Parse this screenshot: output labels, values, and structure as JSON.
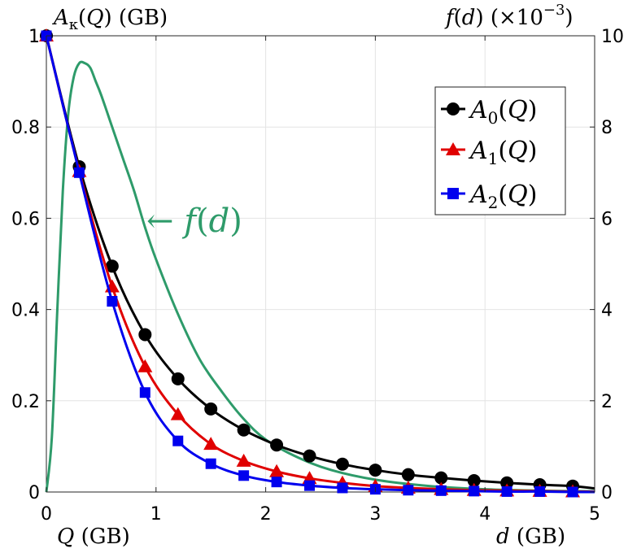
{
  "chart_data": {
    "type": "line",
    "xlabel_left": "Q (GB)",
    "xlabel_right": "d (GB)",
    "ylabel_left": "Aκ(Q) (GB)",
    "ylabel_right": "f(d) (×10−3)",
    "xlim": [
      0,
      5
    ],
    "ylim_left": [
      0,
      1
    ],
    "ylim_right": [
      0,
      10
    ],
    "x_ticks": [
      "0",
      "1",
      "2",
      "3",
      "4",
      "5"
    ],
    "y_ticks_left": [
      "0",
      "0.2",
      "0.4",
      "0.6",
      "0.8",
      "1"
    ],
    "y_ticks_right": [
      "0",
      "2",
      "4",
      "6",
      "8",
      "10"
    ],
    "grid": true,
    "legend_position": "top-right",
    "annotation": "← f(d)",
    "marker_x": [
      0,
      0.3,
      0.6,
      0.9,
      1.2,
      1.5,
      1.8,
      2.1,
      2.4,
      2.7,
      3.0,
      3.3,
      3.6,
      3.9,
      4.2,
      4.5,
      4.8
    ],
    "series": [
      {
        "name": "A0(Q)",
        "color": "#000000",
        "marker": "circle",
        "axis": "left",
        "values": [
          1.0,
          0.713,
          0.495,
          0.345,
          0.248,
          0.182,
          0.136,
          0.103,
          0.079,
          0.061,
          0.048,
          0.038,
          0.031,
          0.025,
          0.02,
          0.016,
          0.013
        ]
      },
      {
        "name": "A1(Q)",
        "color": "#e00000",
        "marker": "triangle",
        "axis": "left",
        "values": [
          1.0,
          0.703,
          0.45,
          0.275,
          0.17,
          0.105,
          0.068,
          0.045,
          0.03,
          0.02,
          0.013,
          0.009,
          0.006,
          0.004,
          0.003,
          0.002,
          0.001
        ]
      },
      {
        "name": "A2(Q)",
        "color": "#0000ee",
        "marker": "square",
        "axis": "left",
        "values": [
          1.0,
          0.7,
          0.418,
          0.218,
          0.112,
          0.062,
          0.036,
          0.022,
          0.014,
          0.009,
          0.006,
          0.004,
          0.003,
          0.002,
          0.001,
          0.001,
          0.0
        ]
      },
      {
        "name": "f(d)",
        "color": "#2e9b6a",
        "marker": "none",
        "axis": "right",
        "x": [
          0,
          0.05,
          0.1,
          0.15,
          0.2,
          0.25,
          0.3,
          0.35,
          0.4,
          0.45,
          0.5,
          0.6,
          0.7,
          0.8,
          0.9,
          1.0,
          1.2,
          1.4,
          1.6,
          1.8,
          2.0,
          2.3,
          2.6,
          3.0,
          3.5,
          4.0,
          4.5,
          5.0
        ],
        "values": [
          0,
          1.2,
          4.0,
          6.6,
          8.3,
          9.1,
          9.4,
          9.4,
          9.3,
          9.0,
          8.7,
          8.0,
          7.3,
          6.6,
          5.8,
          5.1,
          3.9,
          2.9,
          2.2,
          1.6,
          1.15,
          0.75,
          0.48,
          0.27,
          0.13,
          0.06,
          0.03,
          0.015
        ]
      }
    ]
  }
}
